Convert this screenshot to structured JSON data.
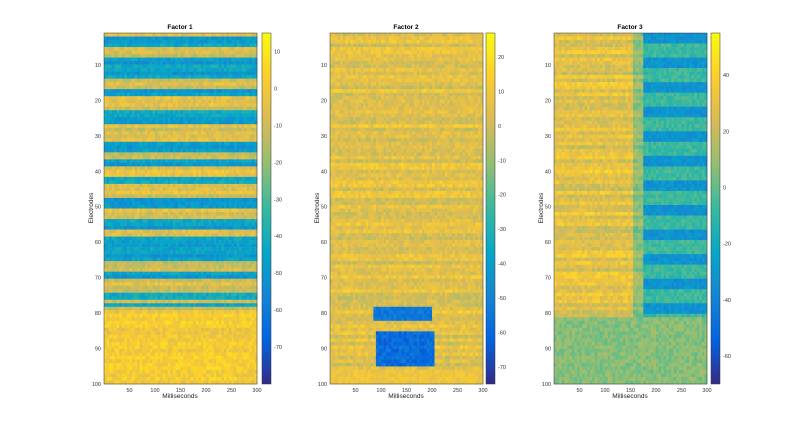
{
  "chart_data": [
    {
      "type": "heatmap",
      "title": "Factor 1",
      "xlabel": "Milliseconds",
      "ylabel": "Electrodes",
      "x_range": [
        0,
        300
      ],
      "y_range": [
        1,
        100
      ],
      "x_ticks": [
        "50",
        "100",
        "150",
        "200",
        "250",
        "300"
      ],
      "y_ticks": [
        "10",
        "20",
        "30",
        "40",
        "50",
        "60",
        "70",
        "80",
        "90",
        "100"
      ],
      "colorbar_range": [
        -80,
        15
      ],
      "colorbar_ticks": [
        "10",
        "0",
        "-10",
        "-20",
        "-30",
        "-40",
        "-50",
        "-60",
        "-70"
      ],
      "colormap": "parula"
    },
    {
      "type": "heatmap",
      "title": "Factor 2",
      "xlabel": "Milliseconds",
      "ylabel": "Electrodes",
      "x_range": [
        0,
        300
      ],
      "y_range": [
        1,
        100
      ],
      "x_ticks": [
        "50",
        "100",
        "150",
        "200",
        "250",
        "300"
      ],
      "y_ticks": [
        "10",
        "20",
        "30",
        "40",
        "50",
        "60",
        "70",
        "80",
        "90",
        "100"
      ],
      "colorbar_range": [
        -75,
        27
      ],
      "colorbar_ticks": [
        "20",
        "10",
        "0",
        "-10",
        "-20",
        "-30",
        "-40",
        "-50",
        "-60",
        "-70"
      ],
      "colormap": "parula"
    },
    {
      "type": "heatmap",
      "title": "Factor 3",
      "xlabel": "Milliseconds",
      "ylabel": "Electrodes",
      "x_range": [
        0,
        300
      ],
      "y_range": [
        1,
        100
      ],
      "x_ticks": [
        "50",
        "100",
        "150",
        "200",
        "250",
        "300"
      ],
      "y_ticks": [
        "10",
        "20",
        "30",
        "40",
        "50",
        "60",
        "70",
        "80",
        "90",
        "100"
      ],
      "colorbar_range": [
        -70,
        55
      ],
      "colorbar_ticks": [
        "40",
        "20",
        "0",
        "-20",
        "-40",
        "-60"
      ],
      "colormap": "parula"
    }
  ]
}
